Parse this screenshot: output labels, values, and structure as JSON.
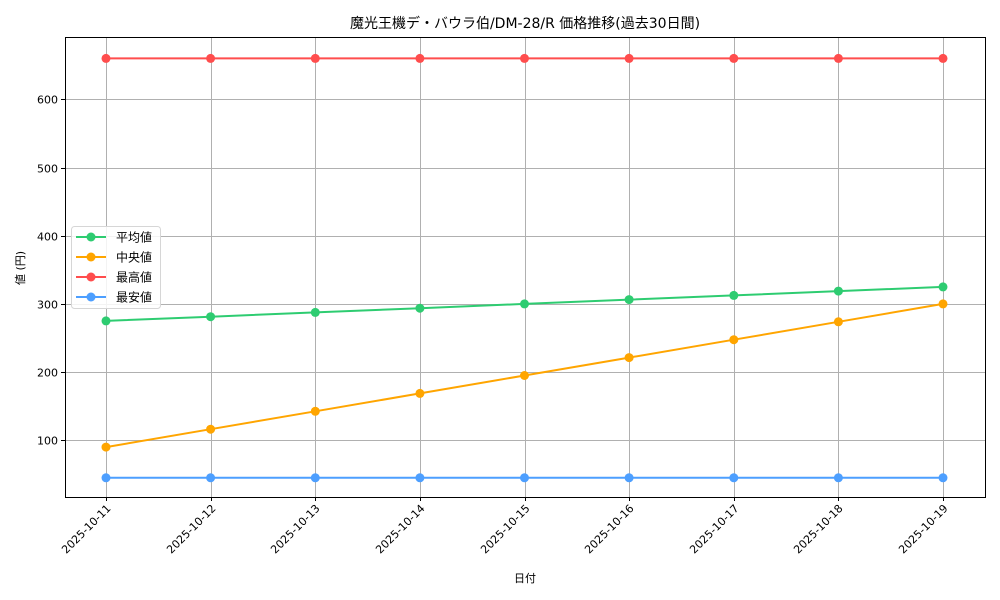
{
  "chart_data": {
    "type": "line",
    "title": "魔光王機デ・バウラ伯/DM-28/R 価格推移(過去30日間)",
    "xlabel": "日付",
    "ylabel": "値 (円)",
    "categories": [
      "2025-10-11",
      "2025-10-12",
      "2025-10-13",
      "2025-10-14",
      "2025-10-15",
      "2025-10-16",
      "2025-10-17",
      "2025-10-18",
      "2025-10-19"
    ],
    "x": [
      "2025-10-11",
      "2025-10-12",
      "2025-10-13",
      "2025-10-14",
      "2025-10-15",
      "2025-10-16",
      "2025-10-17",
      "2025-10-18",
      "2025-10-19"
    ],
    "series": [
      {
        "name": "平均値",
        "color": "#2ecc71",
        "values": [
          275,
          281.25,
          287.5,
          293.75,
          300,
          306.25,
          312.5,
          318.75,
          325
        ]
      },
      {
        "name": "中央値",
        "color": "#ffa500",
        "values": [
          90,
          116.25,
          142.5,
          168.75,
          195,
          221.25,
          247.5,
          273.75,
          300
        ]
      },
      {
        "name": "最高値",
        "color": "#ff4d4d",
        "values": [
          660,
          660,
          660,
          660,
          660,
          660,
          660,
          660,
          660
        ]
      },
      {
        "name": "最安値",
        "color": "#4d9fff",
        "values": [
          45,
          45,
          45,
          45,
          45,
          45,
          45,
          45,
          45
        ]
      }
    ],
    "yticks": [
      100,
      200,
      300,
      400,
      500,
      600
    ],
    "ylim": [
      14,
      691
    ],
    "grid": true,
    "legend_position": "center left",
    "marker": "circle"
  }
}
